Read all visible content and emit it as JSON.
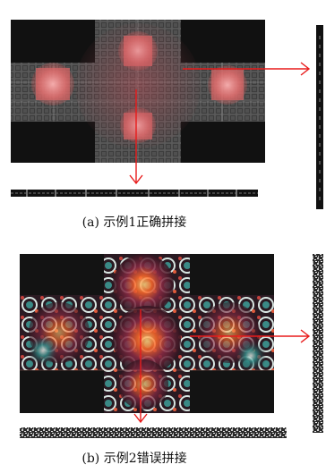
{
  "figure": {
    "example1_caption": "(a) 示例1正确拼接",
    "example2_caption": "(b) 示例2错误拼接"
  },
  "colors": {
    "arrow": "#e81b1b",
    "background_tile": "#121212",
    "grid_line": "#bdbdbd",
    "highlight": "#f06a6a",
    "fractal_glow": "#ff6a2a",
    "fractal_teal": "#2f8f8a"
  }
}
